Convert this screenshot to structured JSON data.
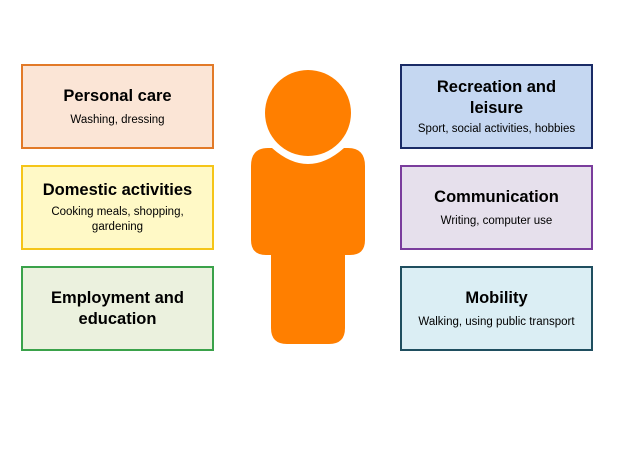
{
  "boxes": [
    {
      "id": "personal-care",
      "title": "Personal care",
      "subtitle": "Washing, dressing",
      "bg": "#fbe5d6",
      "border": "#e27a28"
    },
    {
      "id": "domestic-activities",
      "title": "Domestic activities",
      "subtitle": "Cooking meals, shopping, gardening",
      "bg": "#fff9c6",
      "border": "#f5c518"
    },
    {
      "id": "employment-education",
      "title": "Employment and education",
      "subtitle": "",
      "bg": "#ebf1de",
      "border": "#3aa24a"
    },
    {
      "id": "recreation-leisure",
      "title": "Recreation and leisure",
      "subtitle": "Sport, social activities, hobbies",
      "bg": "#c5d7f1",
      "border": "#1a2b66"
    },
    {
      "id": "communication",
      "title": "Communication",
      "subtitle": "Writing, computer use",
      "bg": "#e6e0ec",
      "border": "#7a3d9c"
    },
    {
      "id": "mobility",
      "title": "Mobility",
      "subtitle": "Walking, using public transport",
      "bg": "#dbeef4",
      "border": "#1f4e5f"
    }
  ],
  "person": {
    "icon": "person-icon",
    "color": "#ff7f00"
  }
}
